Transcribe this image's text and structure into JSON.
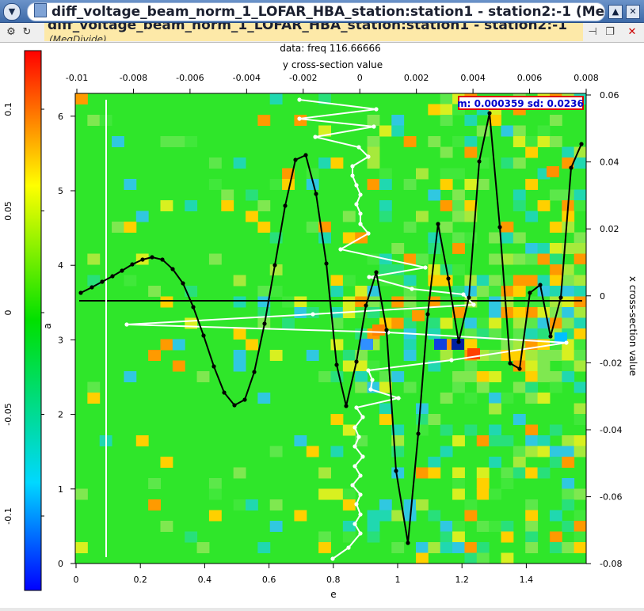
{
  "window": {
    "title": "diff_voltage_beam_norm_1_LOFAR_HBA_station:station1 - station2:-1 (Me",
    "buttons": [
      "▲",
      "✕"
    ]
  },
  "tab": {
    "title": "diff_voltage_beam_norm_1_LOFAR_HBA_station:station1 - station2:-1",
    "subtitle": "(MeqDivide)"
  },
  "plot": {
    "data_title": "data: freq 116.66666",
    "top_axis_label": "y cross-section value",
    "bottom_axis_label": "e",
    "left_axis_label": "a",
    "right_axis_label": "x cross-section value",
    "colorbar_label": "",
    "stats_box": "m: 0.000359 sd: 0.0236",
    "top_ticks": [
      "-0.01",
      "-0.008",
      "-0.006",
      "-0.004",
      "-0.002",
      "0",
      "0.002",
      "0.004",
      "0.006",
      "0.008"
    ],
    "bottom_ticks": [
      "0",
      "0.2",
      "0.4",
      "0.6",
      "0.8",
      "1",
      "1.2",
      "1.4"
    ],
    "left_ticks": [
      "0",
      "1",
      "2",
      "3",
      "4",
      "5",
      "6"
    ],
    "right_ticks": [
      "0.06",
      "0.04",
      "0.02",
      "0",
      "-0.02",
      "-0.04",
      "-0.06",
      "-0.08"
    ],
    "colorbar_ticks": [
      "0.1",
      "0.05",
      "0",
      "-0.05",
      "-0.1"
    ]
  }
}
